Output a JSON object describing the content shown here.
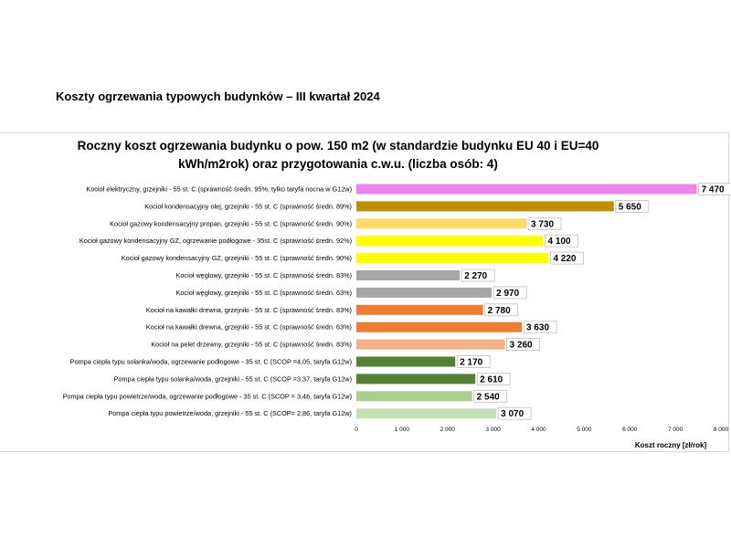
{
  "page": {
    "heading": "Koszty ogrzewania typowych budynków – III kwartał 2024"
  },
  "chart_data": {
    "type": "bar",
    "orientation": "horizontal",
    "title_line1": "Roczny koszt ogrzewania budynku  o pow. 150 m2 (w standardzie budynku EU 40 i EU=40",
    "title_line2": "kWh/m2rok) oraz przygotowania c.w.u. (liczba osób: 4)",
    "xlabel": "Koszt roczny [zł/rok]",
    "ylabel": "",
    "xlim": [
      0,
      8000
    ],
    "x_ticks": [
      "0",
      "1 000",
      "2 000",
      "3 000",
      "4 000",
      "5 000",
      "6 000",
      "7 000",
      "8 000"
    ],
    "grid": false,
    "legend": "none",
    "categories": [
      "Kocioł  elektryczny,  grzejniki - 55 st. C  (sprawność średn. 95%, tylko taryfa nocna w G12w)",
      "Kocioł  kondensacyjny olej,  grzejniki - 55 st. C  (sprawność średn. 89%)",
      "Kocioł gazowy kondensacyjny propan, grzejniki - 55 st. C  (sprawność średn. 90%)",
      "Kocioł gazowy kondensacyjny GZ, ogrzewanie podłogowe - 35st. C  (sprawność średn. 92%)",
      "Kocioł gazowy kondensacyjny GZ, grzejniki - 55 st. C  (sprawność średn. 90%)",
      "Kocioł węglowy,  grzejniki - 55 st. C  (sprawność średn. 83%)",
      "Kocioł węglowy,  grzejniki - 55 st. C  (sprawność średn. 63%)",
      "Kocioł na kawałki drewna, grzejniki - 55 st. C (sprawność średn. 83%)",
      "Kocioł na kawałki drewna, grzejniki - 55 st. C  (sprawność średn. 63%)",
      "Kocioł na pelet drzewny, grzejniki - 55 st. C  (sprawność średn. 83%)",
      "Pompa ciepła typu solanka/woda, ogrzewanie podłogowe - 35 st. C  (SCOP =4,05, taryfa G12w)",
      "Pompa ciepła typu solanka/woda, grzejniki - 55 st. C (SCOP =3,37, taryfa G12w)",
      "Pompa ciepła typu powietrze/woda, ogrzewanie podłogowe - 35 st. C (SCOP = 3,46, taryfa G12w)",
      "Pompa ciepła typu powietrze/woda, grzejniki - 55 st. C (SCOP= 2,86, taryfa G12w)"
    ],
    "values": [
      7470,
      5650,
      3730,
      4100,
      4220,
      2270,
      2970,
      2780,
      3630,
      3260,
      2170,
      2610,
      2540,
      3070
    ],
    "value_labels": [
      "7 470",
      "5 650",
      "3 730",
      "4 100",
      "4 220",
      "2 270",
      "2 970",
      "2 780",
      "3 630",
      "3 260",
      "2 170",
      "2 610",
      "2 540",
      "3 070"
    ],
    "colors": [
      "#ee82ee",
      "#bf9000",
      "#ffd966",
      "#ffff00",
      "#ffff00",
      "#a6a6a6",
      "#a6a6a6",
      "#ed7d31",
      "#ed7d31",
      "#f4b183",
      "#548235",
      "#548235",
      "#a9d18e",
      "#c5e0b4"
    ]
  }
}
